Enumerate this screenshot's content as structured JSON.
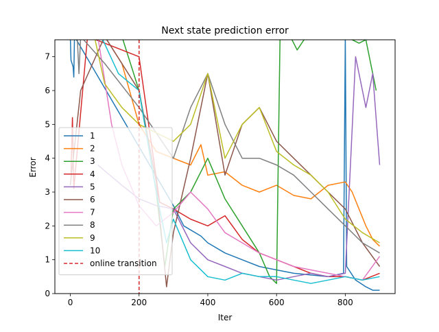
{
  "chart_data": {
    "type": "line",
    "title": "Next state prediction error",
    "xlabel": "Iter",
    "ylabel": "Error",
    "xlim": [
      -45,
      945
    ],
    "ylim": [
      0,
      7.5
    ],
    "xticks": [
      0,
      200,
      400,
      600,
      800
    ],
    "yticks": [
      0,
      1,
      2,
      3,
      4,
      5,
      6,
      7
    ],
    "grid": false,
    "legend_position": "lower-left",
    "series": [
      {
        "name": "1",
        "color": "#1f77b4",
        "points": [
          [
            0,
            7.6
          ],
          [
            2,
            6.9
          ],
          [
            8,
            6.7
          ],
          [
            10,
            6.4
          ],
          [
            12,
            7.6
          ],
          [
            300,
            2.6
          ],
          [
            330,
            2.0
          ],
          [
            380,
            1.7
          ],
          [
            400,
            1.5
          ],
          [
            450,
            1.2
          ],
          [
            500,
            1.0
          ],
          [
            550,
            0.8
          ],
          [
            600,
            0.7
          ],
          [
            650,
            0.6
          ],
          [
            700,
            0.55
          ],
          [
            750,
            0.5
          ],
          [
            795,
            0.6
          ],
          [
            800,
            7.6
          ],
          [
            804,
            0.8
          ],
          [
            830,
            0.4
          ],
          [
            860,
            0.2
          ],
          [
            880,
            0.1
          ],
          [
            900,
            0.1
          ]
        ]
      },
      {
        "name": "2",
        "color": "#ff7f0e",
        "points": [
          [
            100,
            7.6
          ],
          [
            150,
            6.8
          ],
          [
            200,
            5.0
          ],
          [
            250,
            4.2
          ],
          [
            300,
            4.0
          ],
          [
            350,
            3.8
          ],
          [
            380,
            4.4
          ],
          [
            400,
            3.5
          ],
          [
            450,
            3.6
          ],
          [
            500,
            3.2
          ],
          [
            550,
            3.0
          ],
          [
            600,
            3.2
          ],
          [
            650,
            2.9
          ],
          [
            700,
            2.8
          ],
          [
            750,
            3.2
          ],
          [
            800,
            3.3
          ],
          [
            820,
            3.0
          ],
          [
            840,
            2.5
          ],
          [
            860,
            2.0
          ],
          [
            880,
            1.6
          ],
          [
            900,
            1.4
          ]
        ]
      },
      {
        "name": "3",
        "color": "#2ca02c",
        "points": [
          [
            150,
            7.6
          ],
          [
            200,
            6.0
          ],
          [
            250,
            3.0
          ],
          [
            275,
            0.8
          ],
          [
            300,
            2.5
          ],
          [
            350,
            3.0
          ],
          [
            400,
            4.0
          ],
          [
            450,
            2.8
          ],
          [
            500,
            2.0
          ],
          [
            550,
            1.2
          ],
          [
            580,
            0.5
          ],
          [
            600,
            0.3
          ],
          [
            605,
            4.0
          ],
          [
            610,
            7.5
          ],
          [
            640,
            7.6
          ],
          [
            660,
            7.2
          ],
          [
            680,
            7.5
          ],
          [
            700,
            7.6
          ],
          [
            800,
            7.6
          ],
          [
            840,
            7.4
          ],
          [
            860,
            7.5
          ],
          [
            890,
            6.0
          ]
        ]
      },
      {
        "name": "4",
        "color": "#d62728",
        "points": [
          [
            2,
            3.5
          ],
          [
            6,
            5.2
          ],
          [
            10,
            3.1
          ],
          [
            50,
            7.6
          ],
          [
            200,
            7.0
          ],
          [
            260,
            2.7
          ],
          [
            300,
            2.5
          ],
          [
            350,
            2.2
          ],
          [
            400,
            2.0
          ],
          [
            450,
            2.3
          ],
          [
            500,
            1.6
          ],
          [
            550,
            1.2
          ],
          [
            600,
            1.0
          ],
          [
            650,
            0.8
          ],
          [
            700,
            0.6
          ],
          [
            750,
            0.5
          ],
          [
            800,
            0.5
          ],
          [
            850,
            0.4
          ],
          [
            900,
            0.6
          ]
        ]
      },
      {
        "name": "5",
        "color": "#9467bd",
        "points": [
          [
            80,
            3.8
          ],
          [
            150,
            3.2
          ],
          [
            200,
            2.8
          ],
          [
            250,
            2.6
          ],
          [
            300,
            2.5
          ],
          [
            350,
            1.5
          ],
          [
            400,
            1.0
          ],
          [
            450,
            0.8
          ],
          [
            500,
            0.6
          ],
          [
            550,
            0.5
          ],
          [
            600,
            0.4
          ],
          [
            650,
            0.5
          ],
          [
            700,
            0.6
          ],
          [
            750,
            0.5
          ],
          [
            800,
            0.6
          ],
          [
            830,
            7.0
          ],
          [
            860,
            5.5
          ],
          [
            880,
            6.5
          ],
          [
            900,
            3.8
          ]
        ]
      },
      {
        "name": "6",
        "color": "#8c564b",
        "points": [
          [
            0,
            3.2
          ],
          [
            30,
            6.0
          ],
          [
            100,
            7.6
          ],
          [
            200,
            6.0
          ],
          [
            250,
            3.3
          ],
          [
            280,
            0.2
          ],
          [
            300,
            1.8
          ],
          [
            350,
            4.0
          ],
          [
            400,
            6.5
          ],
          [
            450,
            3.5
          ],
          [
            500,
            5.0
          ],
          [
            550,
            5.5
          ],
          [
            600,
            4.5
          ],
          [
            650,
            4.0
          ],
          [
            700,
            3.5
          ],
          [
            750,
            3.0
          ],
          [
            800,
            2.5
          ],
          [
            850,
            1.5
          ],
          [
            900,
            0.8
          ]
        ]
      },
      {
        "name": "7",
        "color": "#e377c2",
        "points": [
          [
            80,
            7.6
          ],
          [
            120,
            5.0
          ],
          [
            150,
            3.8
          ],
          [
            200,
            2.6
          ],
          [
            250,
            2.0
          ],
          [
            300,
            2.4
          ],
          [
            350,
            3.0
          ],
          [
            400,
            2.5
          ],
          [
            450,
            1.8
          ],
          [
            500,
            1.5
          ],
          [
            550,
            1.2
          ],
          [
            600,
            1.0
          ],
          [
            650,
            0.8
          ],
          [
            700,
            0.7
          ],
          [
            750,
            0.6
          ],
          [
            800,
            0.5
          ],
          [
            850,
            0.4
          ],
          [
            900,
            1.1
          ]
        ]
      },
      {
        "name": "8",
        "color": "#7f7f7f",
        "points": [
          [
            20,
            7.6
          ],
          [
            25,
            6.5
          ],
          [
            30,
            7.6
          ],
          [
            100,
            6.8
          ],
          [
            200,
            5.5
          ],
          [
            300,
            4.0
          ],
          [
            350,
            5.5
          ],
          [
            400,
            6.5
          ],
          [
            450,
            5.0
          ],
          [
            500,
            4.0
          ],
          [
            550,
            4.0
          ],
          [
            600,
            3.8
          ],
          [
            650,
            3.5
          ],
          [
            700,
            3.0
          ],
          [
            750,
            2.5
          ],
          [
            800,
            2.0
          ],
          [
            850,
            1.5
          ],
          [
            900,
            1.2
          ]
        ]
      },
      {
        "name": "9",
        "color": "#bcbd22",
        "points": [
          [
            70,
            7.6
          ],
          [
            100,
            6.2
          ],
          [
            150,
            5.5
          ],
          [
            200,
            5.0
          ],
          [
            300,
            4.5
          ],
          [
            350,
            5.0
          ],
          [
            400,
            6.5
          ],
          [
            450,
            4.0
          ],
          [
            500,
            5.0
          ],
          [
            550,
            5.5
          ],
          [
            600,
            4.2
          ],
          [
            650,
            3.8
          ],
          [
            700,
            3.5
          ],
          [
            750,
            3.0
          ],
          [
            800,
            2.2
          ],
          [
            850,
            1.8
          ],
          [
            900,
            1.5
          ]
        ]
      },
      {
        "name": "10",
        "color": "#17becf",
        "points": [
          [
            90,
            7.6
          ],
          [
            140,
            6.5
          ],
          [
            200,
            6.0
          ],
          [
            250,
            3.0
          ],
          [
            280,
            1.5
          ],
          [
            300,
            2.2
          ],
          [
            350,
            1.0
          ],
          [
            400,
            0.5
          ],
          [
            450,
            0.4
          ],
          [
            500,
            0.6
          ],
          [
            550,
            0.5
          ],
          [
            600,
            0.5
          ],
          [
            650,
            0.4
          ],
          [
            700,
            0.3
          ],
          [
            750,
            0.4
          ],
          [
            800,
            0.5
          ],
          [
            850,
            0.4
          ],
          [
            900,
            0.5
          ]
        ]
      }
    ],
    "vline": {
      "name": "online transition",
      "x": 200,
      "color": "#d62728",
      "style": "dashed"
    }
  }
}
